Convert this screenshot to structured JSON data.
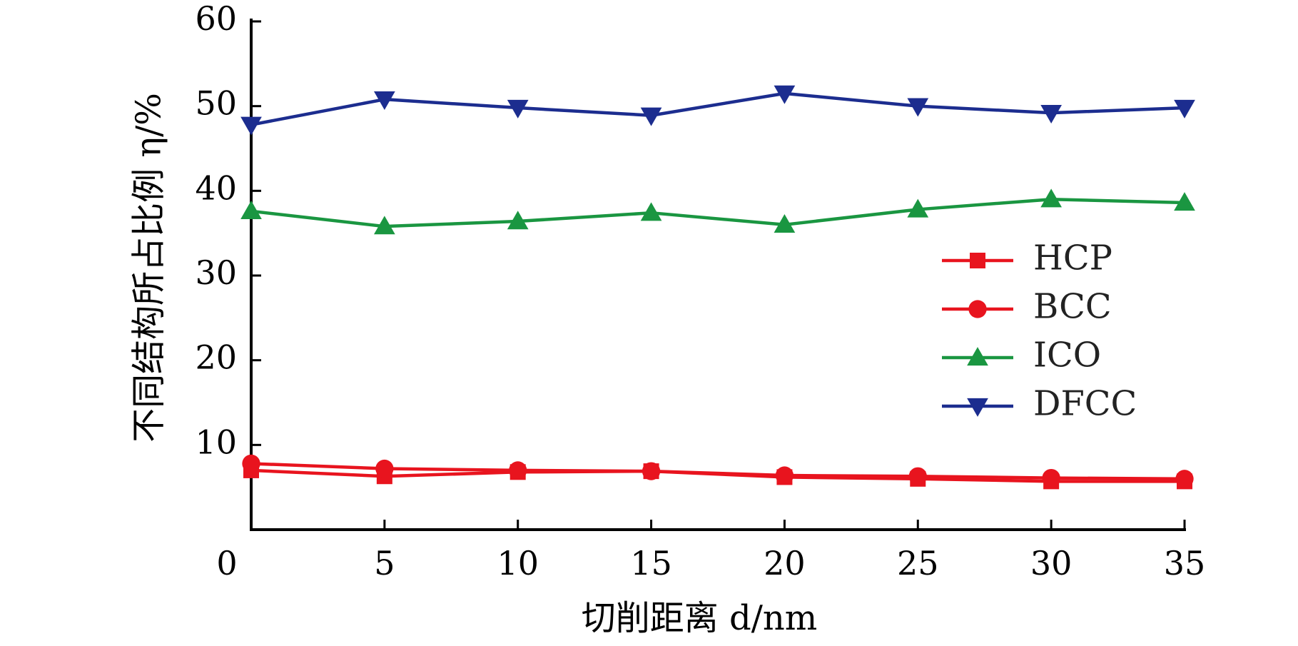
{
  "chart_data": {
    "type": "line",
    "xlabel": "切削距离 d/nm",
    "ylabel": "不同结构所占比例 η/%",
    "xlim": [
      0,
      35
    ],
    "ylim": [
      0,
      60
    ],
    "x_ticks": [
      "0",
      "5",
      "10",
      "15",
      "20",
      "25",
      "30",
      "35"
    ],
    "y_ticks": [
      "10",
      "20",
      "30",
      "40",
      "50",
      "60"
    ],
    "x": [
      0,
      5,
      10,
      15,
      20,
      25,
      30,
      35
    ],
    "legend_position": "center-right",
    "grid": false,
    "series": [
      {
        "name": "HCP",
        "marker": "square",
        "color": "#e8141e",
        "values": [
          7.0,
          6.3,
          6.8,
          6.9,
          6.2,
          6.0,
          5.7,
          5.7
        ]
      },
      {
        "name": "BCC",
        "marker": "circle",
        "color": "#e8141e",
        "values": [
          7.8,
          7.2,
          7.0,
          6.9,
          6.4,
          6.3,
          6.1,
          6.0
        ]
      },
      {
        "name": "ICO",
        "marker": "triangle-up",
        "color": "#1a9641",
        "values": [
          37.6,
          35.8,
          36.4,
          37.4,
          36.0,
          37.8,
          39.0,
          38.6
        ]
      },
      {
        "name": "DFCC",
        "marker": "triangle-down",
        "color": "#1c2d8f",
        "values": [
          47.8,
          50.8,
          49.8,
          48.9,
          51.5,
          50.0,
          49.2,
          49.8
        ]
      }
    ]
  }
}
